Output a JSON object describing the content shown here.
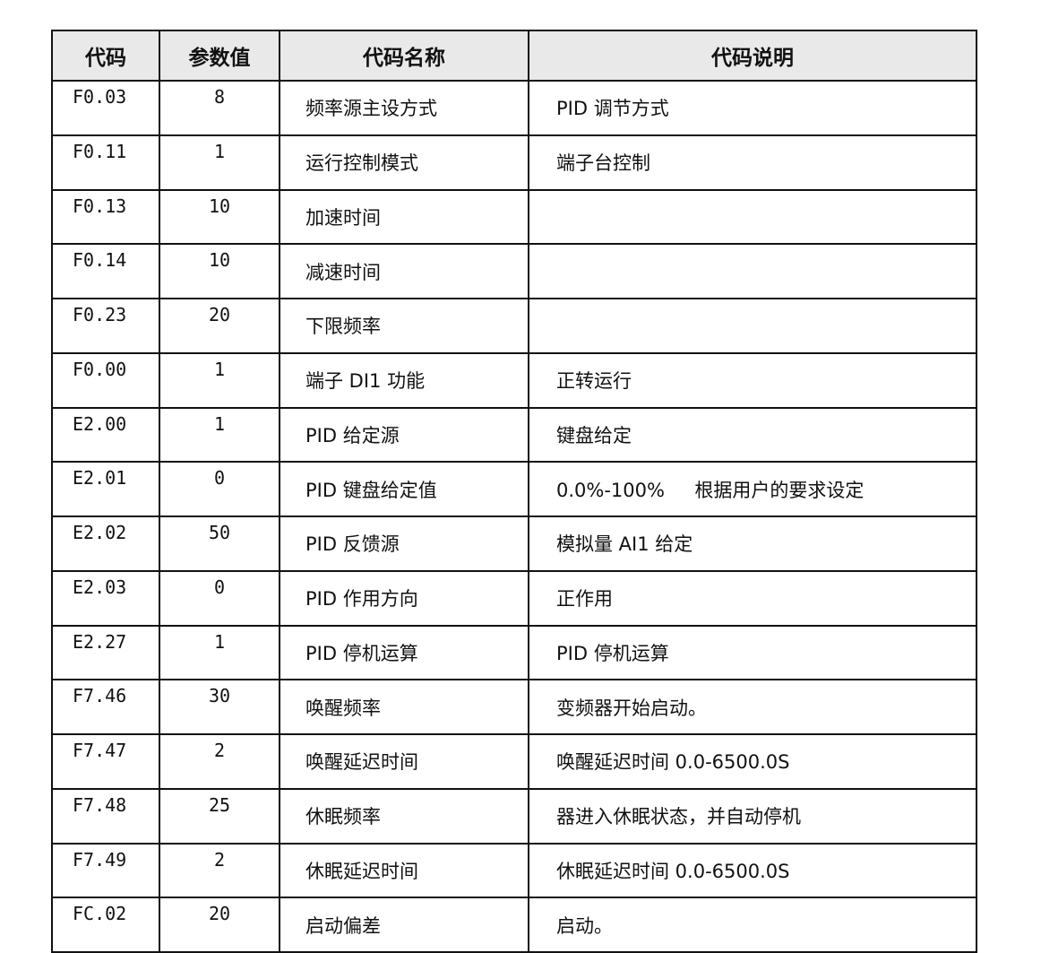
{
  "table": {
    "headers": [
      "代码",
      "参数值",
      "代码名称",
      "代码说明"
    ],
    "rows": [
      {
        "code": "F0.03",
        "value": "8",
        "name": "频率源主设方式",
        "desc": "PID 调节方式"
      },
      {
        "code": "F0.11",
        "value": "1",
        "name": "运行控制模式",
        "desc": "端子台控制"
      },
      {
        "code": "F0.13",
        "value": "10",
        "name": "加速时间",
        "desc": ""
      },
      {
        "code": "F0.14",
        "value": "10",
        "name": "减速时间",
        "desc": ""
      },
      {
        "code": "F0.23",
        "value": "20",
        "name": "下限频率",
        "desc": ""
      },
      {
        "code": "F0.00",
        "value": "1",
        "name": "端子 DI1 功能",
        "desc": "正转运行"
      },
      {
        "code": "E2.00",
        "value": "1",
        "name": "PID 给定源",
        "desc": "键盘给定"
      },
      {
        "code": "E2.01",
        "value": "0",
        "name": "PID 键盘给定值",
        "desc": "0.0%-100%     根据用户的要求设定"
      },
      {
        "code": "E2.02",
        "value": "50",
        "name": "PID 反馈源",
        "desc": "模拟量 AI1 给定"
      },
      {
        "code": "E2.03",
        "value": "0",
        "name": "PID 作用方向",
        "desc": "正作用"
      },
      {
        "code": "E2.27",
        "value": "1",
        "name": "PID 停机运算",
        "desc": "PID 停机运算"
      },
      {
        "code": "F7.46",
        "value": "30",
        "name": "唤醒频率",
        "desc": "变频器开始启动。"
      },
      {
        "code": "F7.47",
        "value": "2",
        "name": "唤醒延迟时间",
        "desc": "唤醒延迟时间 0.0-6500.0S"
      },
      {
        "code": "F7.48",
        "value": "25",
        "name": "休眠频率",
        "desc": "器进入休眠状态，并自动停机"
      },
      {
        "code": "F7.49",
        "value": "2",
        "name": "休眠延迟时间",
        "desc": "休眠延迟时间 0.0-6500.0S"
      },
      {
        "code": "FC.02",
        "value": "20",
        "name": "启动偏差",
        "desc": "启动。"
      }
    ]
  },
  "colors": {
    "header_bg": "#e9e9e9",
    "border": "#111111"
  }
}
